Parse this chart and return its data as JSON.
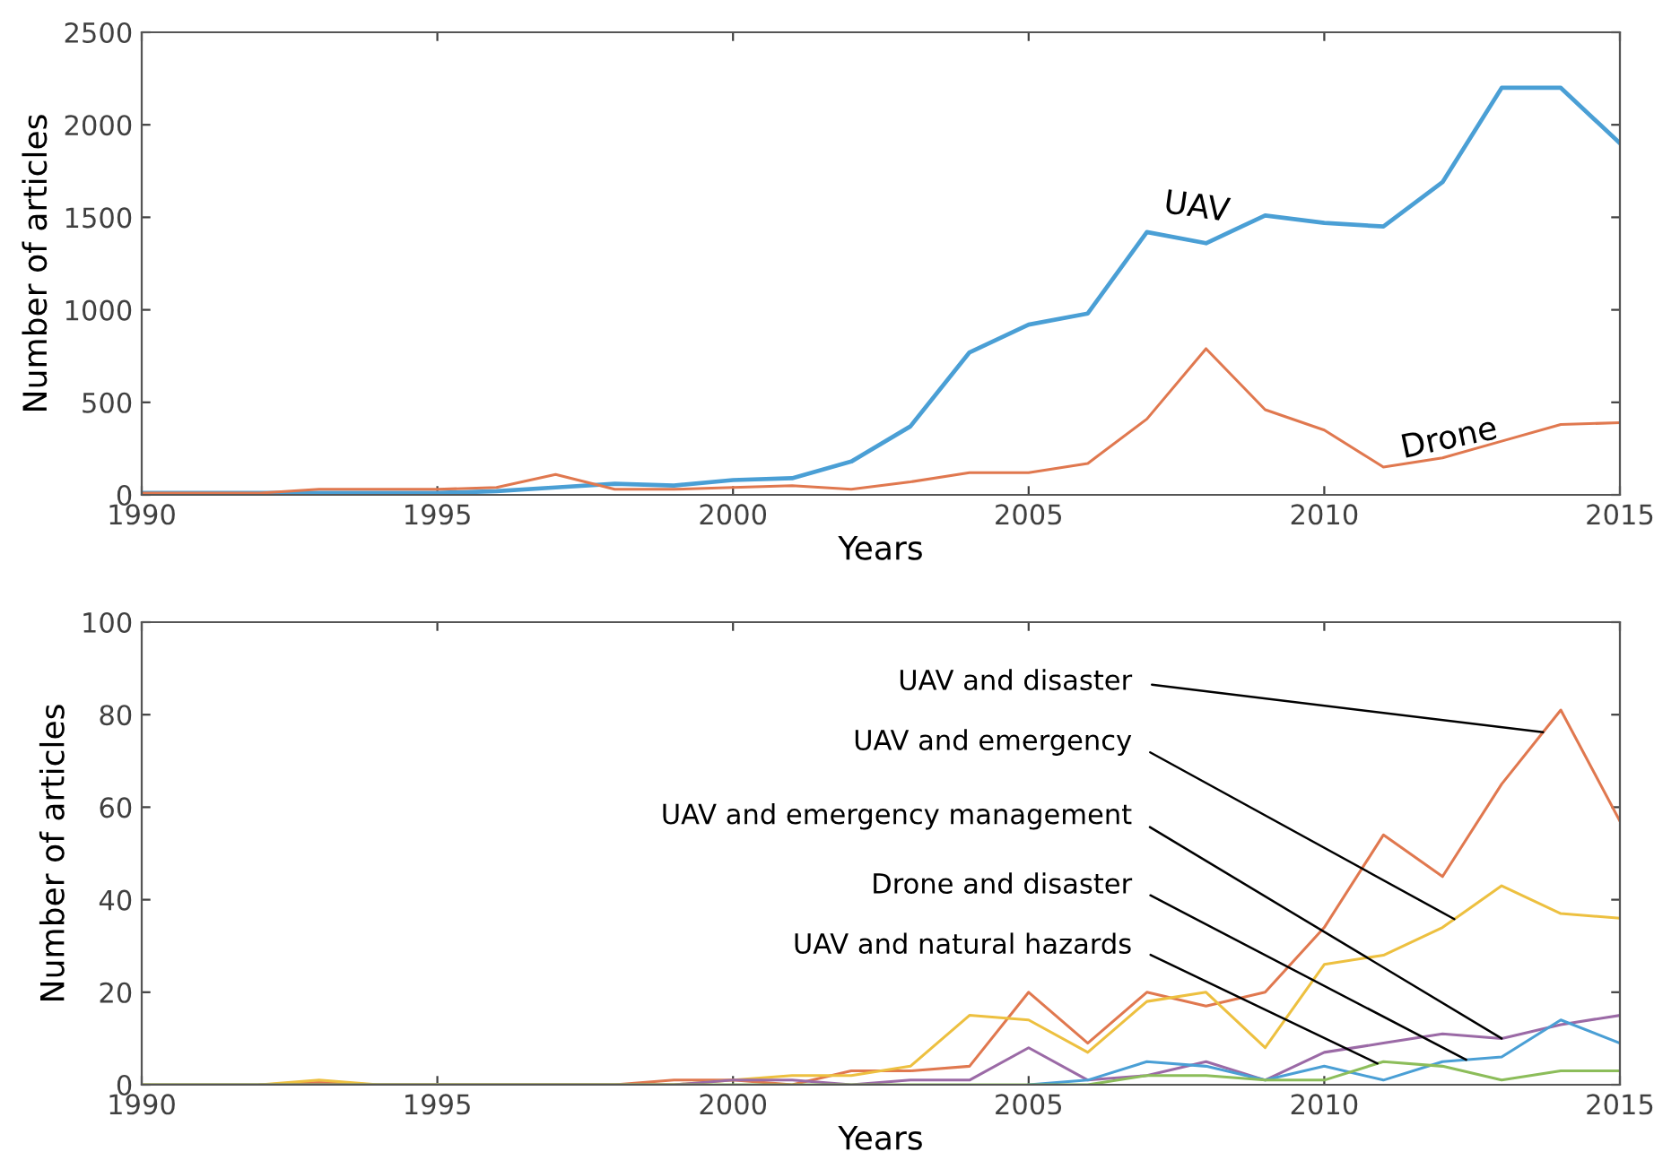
{
  "chart_data": [
    {
      "type": "line",
      "xlabel": "Years",
      "ylabel": "Number of articles",
      "x": [
        1990,
        1991,
        1992,
        1993,
        1994,
        1995,
        1996,
        1997,
        1998,
        1999,
        2000,
        2001,
        2002,
        2003,
        2004,
        2005,
        2006,
        2007,
        2008,
        2009,
        2010,
        2011,
        2012,
        2013,
        2014,
        2015
      ],
      "xlim": [
        1990,
        2015
      ],
      "xticks": [
        1990,
        1995,
        2000,
        2005,
        2010,
        2015
      ],
      "ylim": [
        0,
        2500
      ],
      "yticks": [
        0,
        500,
        1000,
        1500,
        2000,
        2500
      ],
      "series": [
        {
          "name": "UAV",
          "color": "#4a9fd5",
          "values": [
            10,
            10,
            10,
            10,
            10,
            10,
            20,
            40,
            60,
            50,
            80,
            90,
            180,
            370,
            770,
            920,
            980,
            1420,
            1360,
            1510,
            1470,
            1450,
            1690,
            2200,
            2200,
            1900
          ]
        },
        {
          "name": "Drone",
          "color": "#e0784f",
          "values": [
            10,
            10,
            10,
            30,
            30,
            30,
            40,
            110,
            30,
            30,
            40,
            50,
            30,
            70,
            120,
            120,
            170,
            410,
            790,
            460,
            350,
            150,
            200,
            290,
            380,
            390
          ]
        }
      ]
    },
    {
      "type": "line",
      "xlabel": "Years",
      "ylabel": "Number of articles",
      "x": [
        1990,
        1991,
        1992,
        1993,
        1994,
        1995,
        1996,
        1997,
        1998,
        1999,
        2000,
        2001,
        2002,
        2003,
        2004,
        2005,
        2006,
        2007,
        2008,
        2009,
        2010,
        2011,
        2012,
        2013,
        2014,
        2015
      ],
      "xlim": [
        1990,
        2015
      ],
      "xticks": [
        1990,
        1995,
        2000,
        2005,
        2010,
        2015
      ],
      "ylim": [
        0,
        100
      ],
      "yticks": [
        0,
        20,
        40,
        60,
        80,
        100
      ],
      "series": [
        {
          "name": "UAV and disaster",
          "color": "#e0784f",
          "values": [
            null,
            null,
            0,
            0.5,
            0,
            0,
            0,
            0,
            0,
            1,
            1,
            0,
            3,
            3,
            4,
            20,
            9,
            20,
            17,
            20,
            34,
            54,
            45,
            65,
            81,
            57
          ]
        },
        {
          "name": "UAV and emergency",
          "color": "#edc040",
          "values": [
            0,
            0,
            0,
            1,
            0,
            0,
            0,
            0,
            0,
            0,
            1,
            2,
            2,
            4,
            15,
            14,
            7,
            18,
            20,
            8,
            26,
            28,
            34,
            43,
            37,
            36
          ]
        },
        {
          "name": "UAV and emergency management",
          "color": "#9b6aa6",
          "values": [
            0,
            0,
            0,
            0,
            0,
            0,
            0,
            0,
            0,
            0,
            1,
            1,
            0,
            1,
            1,
            8,
            1,
            2,
            5,
            1,
            7,
            9,
            11,
            10,
            13,
            15
          ]
        },
        {
          "name": "Drone and disaster",
          "color": "#4a9fd5",
          "values": [
            null,
            null,
            null,
            null,
            null,
            null,
            null,
            null,
            null,
            null,
            null,
            null,
            null,
            null,
            null,
            0,
            1,
            5,
            4,
            1,
            4,
            1,
            5,
            6,
            14,
            9
          ]
        },
        {
          "name": "UAV and natural hazards",
          "color": "#8cbd5a",
          "values": [
            0,
            0,
            0,
            0,
            0,
            0,
            0,
            0,
            0,
            0,
            0,
            0,
            0,
            0,
            0,
            0,
            0,
            2,
            2,
            1,
            1,
            5,
            4,
            1,
            3,
            3
          ]
        }
      ]
    }
  ]
}
